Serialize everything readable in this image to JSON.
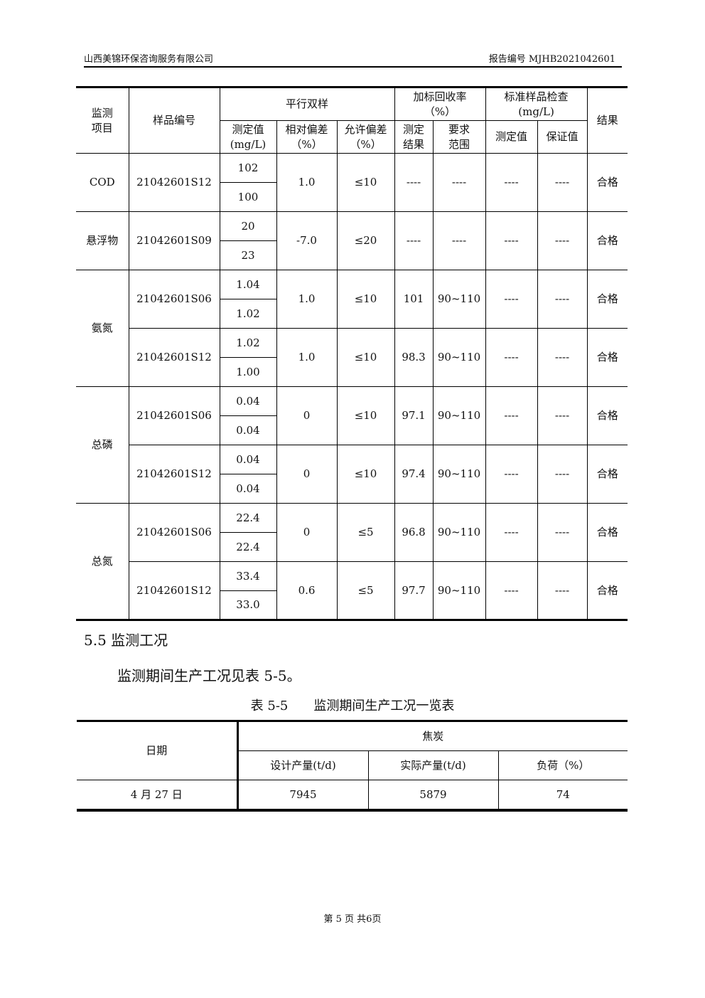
{
  "header": {
    "company": "山西美锦环保咨询服务有限公司",
    "report_no": "报告编号 MJHB2021042601"
  },
  "qc_table": {
    "headers": {
      "item": "监测项目",
      "sample": "样品编号",
      "parallel": "平行双样",
      "recovery": "加标回收率（%）",
      "standard": "标准样品检查(mg/L)",
      "result": "结果",
      "measured": "测定值(mg/L)",
      "rel_dev": "相对偏差（%）",
      "allow_dev": "允许偏差（%）",
      "rec_result": "测定结果",
      "rec_range": "要求范围",
      "std_measured": "测定值",
      "std_guarantee": "保证值"
    },
    "groups": [
      {
        "item": "COD",
        "samples": [
          {
            "id": "21042601S12",
            "values": [
              "102",
              "100"
            ],
            "rel_dev": "1.0",
            "allow": "≤10",
            "recovery": "----",
            "range": "----",
            "std_measured": "----",
            "std_guarantee": "----",
            "result": "合格"
          }
        ]
      },
      {
        "item": "悬浮物",
        "samples": [
          {
            "id": "21042601S09",
            "values": [
              "20",
              "23"
            ],
            "rel_dev": "-7.0",
            "allow": "≤20",
            "recovery": "----",
            "range": "----",
            "std_measured": "----",
            "std_guarantee": "----",
            "result": "合格"
          }
        ]
      },
      {
        "item": "氨氮",
        "samples": [
          {
            "id": "21042601S06",
            "values": [
              "1.04",
              "1.02"
            ],
            "rel_dev": "1.0",
            "allow": "≤10",
            "recovery": "101",
            "range": "90~110",
            "std_measured": "----",
            "std_guarantee": "----",
            "result": "合格"
          },
          {
            "id": "21042601S12",
            "values": [
              "1.02",
              "1.00"
            ],
            "rel_dev": "1.0",
            "allow": "≤10",
            "recovery": "98.3",
            "range": "90~110",
            "std_measured": "----",
            "std_guarantee": "----",
            "result": "合格"
          }
        ]
      },
      {
        "item": "总磷",
        "samples": [
          {
            "id": "21042601S06",
            "values": [
              "0.04",
              "0.04"
            ],
            "rel_dev": "0",
            "allow": "≤10",
            "recovery": "97.1",
            "range": "90~110",
            "std_measured": "----",
            "std_guarantee": "----",
            "result": "合格"
          },
          {
            "id": "21042601S12",
            "values": [
              "0.04",
              "0.04"
            ],
            "rel_dev": "0",
            "allow": "≤10",
            "recovery": "97.4",
            "range": "90~110",
            "std_measured": "----",
            "std_guarantee": "----",
            "result": "合格"
          }
        ]
      },
      {
        "item": "总氮",
        "samples": [
          {
            "id": "21042601S06",
            "values": [
              "22.4",
              "22.4"
            ],
            "rel_dev": "0",
            "allow": "≤5",
            "recovery": "96.8",
            "range": "90~110",
            "std_measured": "----",
            "std_guarantee": "----",
            "result": "合格"
          },
          {
            "id": "21042601S12",
            "values": [
              "33.4",
              "33.0"
            ],
            "rel_dev": "0.6",
            "allow": "≤5",
            "recovery": "97.7",
            "range": "90~110",
            "std_measured": "----",
            "std_guarantee": "----",
            "result": "合格"
          }
        ]
      }
    ]
  },
  "section": {
    "title": "5.5 监测工况",
    "paragraph": "监测期间生产工况见表 5-5。",
    "caption": "表 5-5　　监测期间生产工况一览表"
  },
  "prod_table": {
    "date_header": "日期",
    "group_header": "焦炭",
    "cols": [
      "设计产量(t/d)",
      "实际产量(t/d)",
      "负荷（%）"
    ],
    "rows": [
      {
        "date": "4 月 27 日",
        "design": "7945",
        "actual": "5879",
        "load": "74"
      }
    ]
  },
  "footer": {
    "page": "第 5 页 共6页"
  }
}
